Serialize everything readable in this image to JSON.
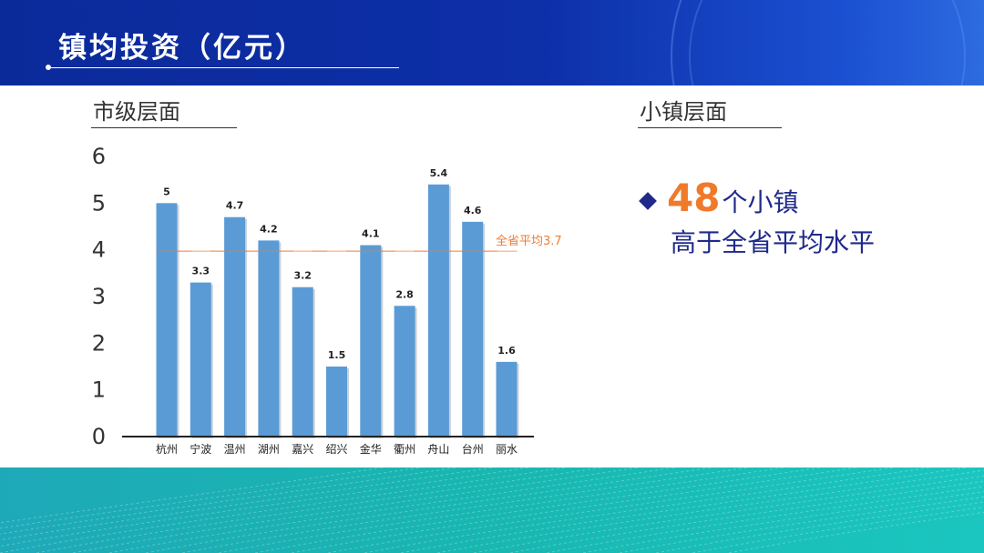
{
  "header": {
    "title": "镇均投资（亿元）"
  },
  "sections": {
    "city_level": "市级层面",
    "town_level": "小镇层面"
  },
  "highlight": {
    "number": "48",
    "suffix": "个小镇",
    "line2": "高于全省平均水平"
  },
  "colors": {
    "bar": "#5b9bd5",
    "average_line": "#ed7d31",
    "header": "#0d2fa8",
    "footer": "#1ab4b4",
    "highlight_text": "#1f2a8a",
    "highlight_number": "#ef7a2a"
  },
  "chart_data": {
    "type": "bar",
    "title": "",
    "xlabel": "",
    "ylabel": "",
    "categories": [
      "杭州",
      "宁波",
      "温州",
      "湖州",
      "嘉兴",
      "绍兴",
      "金华",
      "衢州",
      "舟山",
      "台州",
      "丽水"
    ],
    "values": [
      5,
      3.3,
      4.7,
      4.2,
      3.2,
      1.5,
      4.1,
      2.8,
      5.4,
      4.6,
      1.6
    ],
    "yticks": [
      0,
      1,
      2,
      3,
      4,
      5,
      6
    ],
    "ylim": [
      0,
      6
    ],
    "grid": false,
    "average_line": {
      "label": "全省平均3.7",
      "value": 3.7
    }
  }
}
